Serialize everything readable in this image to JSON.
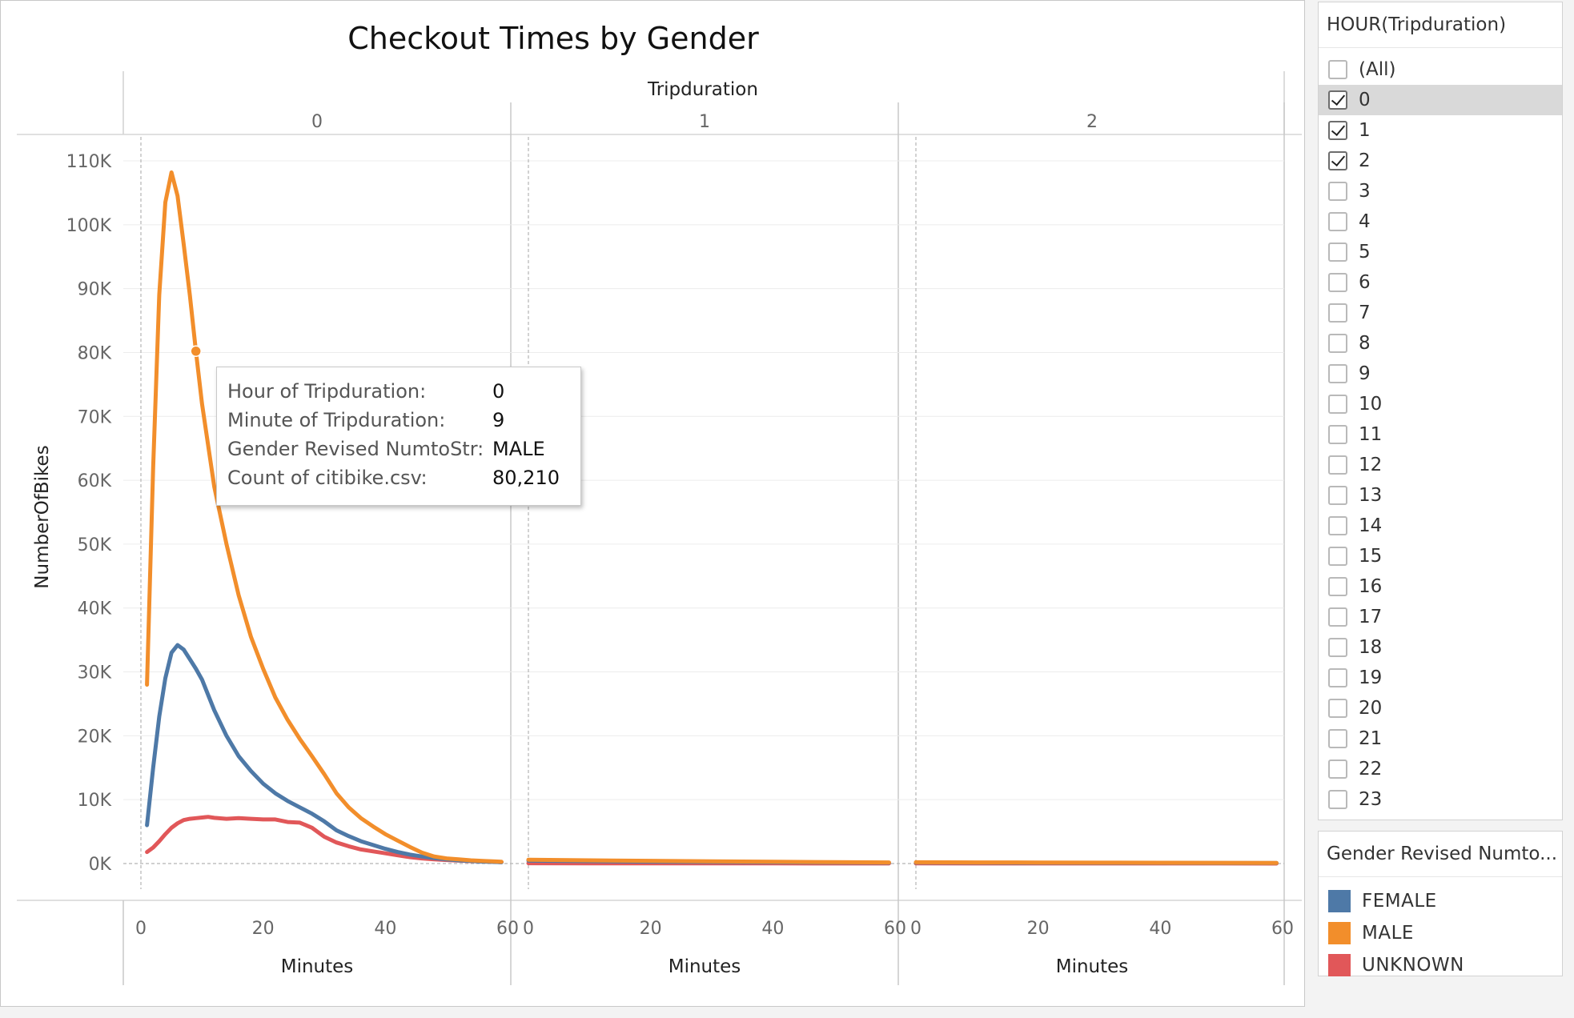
{
  "chart_data": {
    "type": "line",
    "title": "Checkout Times by Gender",
    "column_header_title": "Tripduration",
    "panels": [
      "0",
      "1",
      "2"
    ],
    "xlabel": "Minutes",
    "ylabel": "NumberOfBikes",
    "xlim": [
      0,
      60
    ],
    "x_ticks": [
      "0",
      "20",
      "40",
      "60"
    ],
    "ylim": [
      0,
      110000
    ],
    "y_ticks": [
      "0K",
      "10K",
      "20K",
      "30K",
      "40K",
      "50K",
      "60K",
      "70K",
      "80K",
      "90K",
      "100K",
      "110K"
    ],
    "series": [
      {
        "name": "FEMALE",
        "color": "#4e79a7",
        "panels": [
          {
            "x": [
              1,
              2,
              3,
              4,
              5,
              6,
              7,
              8,
              9,
              10,
              12,
              14,
              16,
              18,
              20,
              22,
              24,
              26,
              28,
              30,
              32,
              34,
              36,
              38,
              40,
              42,
              44,
              46,
              48,
              50,
              52,
              54,
              56,
              58,
              59
            ],
            "y": [
              6000,
              15000,
              23000,
              29000,
              33000,
              34200,
              33500,
              32000,
              30500,
              28800,
              24000,
              20000,
              16800,
              14500,
              12500,
              11000,
              9800,
              8800,
              7800,
              6600,
              5200,
              4300,
              3500,
              2900,
              2300,
              1800,
              1400,
              1100,
              850,
              650,
              500,
              400,
              300,
              250,
              200
            ]
          },
          {
            "x": [
              0,
              10,
              20,
              30,
              40,
              50,
              59
            ],
            "y": [
              450,
              380,
              300,
              250,
              200,
              150,
              120
            ]
          },
          {
            "x": [
              0,
              10,
              20,
              30,
              40,
              50,
              59
            ],
            "y": [
              150,
              130,
              110,
              100,
              90,
              80,
              70
            ]
          }
        ]
      },
      {
        "name": "MALE",
        "color": "#f28e2b",
        "panels": [
          {
            "x": [
              1,
              2,
              3,
              4,
              5,
              6,
              7,
              8,
              9,
              10,
              12,
              14,
              16,
              18,
              20,
              22,
              24,
              26,
              28,
              30,
              32,
              34,
              36,
              38,
              40,
              42,
              44,
              46,
              48,
              50,
              52,
              54,
              56,
              58,
              59
            ],
            "y": [
              28000,
              62000,
              89000,
              103500,
              108200,
              104500,
              97000,
              89000,
              80210,
              72000,
              59000,
              50000,
              42000,
              35500,
              30500,
              26000,
              22500,
              19500,
              16800,
              14000,
              11000,
              8800,
              7100,
              5800,
              4600,
              3600,
              2600,
              1700,
              1100,
              800,
              650,
              500,
              400,
              320,
              280
            ]
          },
          {
            "x": [
              0,
              10,
              20,
              30,
              40,
              50,
              59
            ],
            "y": [
              600,
              500,
              420,
              350,
              280,
              220,
              180
            ]
          },
          {
            "x": [
              0,
              10,
              20,
              30,
              40,
              50,
              59
            ],
            "y": [
              200,
              180,
              160,
              140,
              120,
              110,
              100
            ]
          }
        ]
      },
      {
        "name": "UNKNOWN",
        "color": "#e15759",
        "panels": [
          {
            "x": [
              1,
              2,
              3,
              4,
              5,
              6,
              7,
              8,
              9,
              10,
              11,
              12,
              14,
              16,
              18,
              20,
              22,
              24,
              26,
              28,
              30,
              32,
              34,
              36,
              38,
              40,
              42,
              44,
              46,
              48,
              50,
              52,
              54,
              56,
              58,
              59
            ],
            "y": [
              1800,
              2500,
              3500,
              4600,
              5600,
              6300,
              6800,
              7000,
              7100,
              7200,
              7300,
              7150,
              7000,
              7100,
              7000,
              6900,
              6900,
              6500,
              6400,
              5600,
              4200,
              3300,
              2700,
              2200,
              1900,
              1600,
              1300,
              1000,
              800,
              650,
              550,
              450,
              380,
              320,
              260,
              230
            ]
          },
          {
            "x": [
              0,
              10,
              20,
              30,
              40,
              50,
              59
            ],
            "y": [
              50,
              40,
              30,
              25,
              20,
              15,
              10
            ]
          },
          {
            "x": [
              0,
              10,
              20,
              30,
              40,
              50,
              59
            ],
            "y": [
              20,
              18,
              15,
              12,
              10,
              8,
              6
            ]
          }
        ]
      }
    ],
    "highlight": {
      "series": "MALE",
      "panel": 0,
      "x": 9,
      "y": 80210
    }
  },
  "tooltip": {
    "rows": [
      {
        "label": "Hour of Tripduration:",
        "value": "0"
      },
      {
        "label": "Minute of Tripduration:",
        "value": "9"
      },
      {
        "label": "Gender Revised NumtoStr:",
        "value": "MALE"
      },
      {
        "label": "Count of citibike.csv:",
        "value": "80,210"
      }
    ]
  },
  "filter": {
    "title": "HOUR(Tripduration)",
    "items": [
      {
        "label": "(All)",
        "checked": false,
        "active": false
      },
      {
        "label": "0",
        "checked": true,
        "active": true
      },
      {
        "label": "1",
        "checked": true,
        "active": false
      },
      {
        "label": "2",
        "checked": true,
        "active": false
      },
      {
        "label": "3",
        "checked": false,
        "active": false
      },
      {
        "label": "4",
        "checked": false,
        "active": false
      },
      {
        "label": "5",
        "checked": false,
        "active": false
      },
      {
        "label": "6",
        "checked": false,
        "active": false
      },
      {
        "label": "7",
        "checked": false,
        "active": false
      },
      {
        "label": "8",
        "checked": false,
        "active": false
      },
      {
        "label": "9",
        "checked": false,
        "active": false
      },
      {
        "label": "10",
        "checked": false,
        "active": false
      },
      {
        "label": "11",
        "checked": false,
        "active": false
      },
      {
        "label": "12",
        "checked": false,
        "active": false
      },
      {
        "label": "13",
        "checked": false,
        "active": false
      },
      {
        "label": "14",
        "checked": false,
        "active": false
      },
      {
        "label": "15",
        "checked": false,
        "active": false
      },
      {
        "label": "16",
        "checked": false,
        "active": false
      },
      {
        "label": "17",
        "checked": false,
        "active": false
      },
      {
        "label": "18",
        "checked": false,
        "active": false
      },
      {
        "label": "19",
        "checked": false,
        "active": false
      },
      {
        "label": "20",
        "checked": false,
        "active": false
      },
      {
        "label": "21",
        "checked": false,
        "active": false
      },
      {
        "label": "22",
        "checked": false,
        "active": false
      },
      {
        "label": "23",
        "checked": false,
        "active": false
      }
    ]
  },
  "legend": {
    "title": "Gender Revised Numto...",
    "items": [
      {
        "label": "FEMALE",
        "color": "#4e79a7"
      },
      {
        "label": "MALE",
        "color": "#f28e2b"
      },
      {
        "label": "UNKNOWN",
        "color": "#e15759"
      }
    ]
  }
}
